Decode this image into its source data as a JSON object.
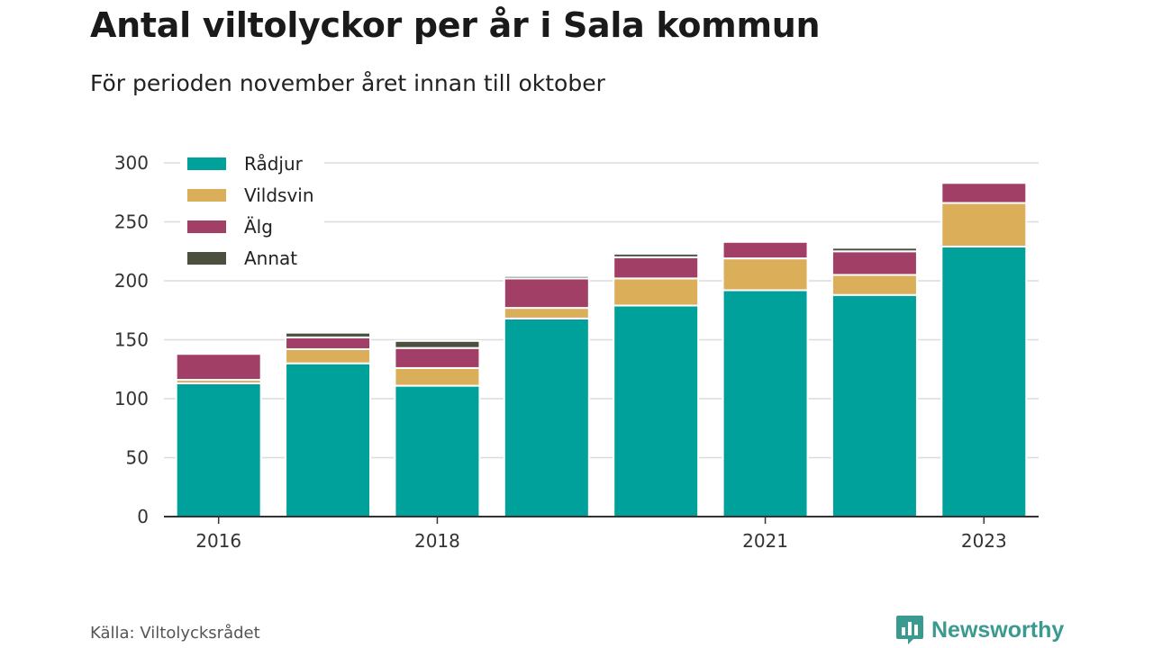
{
  "title": "Antal viltolyckor per år i Sala kommun",
  "subtitle": "För perioden november året innan till oktober",
  "source": "Källa: Viltolycksrådet",
  "brand": "Newsworthy",
  "colors": {
    "Rådjur": "#00a19a",
    "Vildsvin": "#dbae5a",
    "Älg": "#a23f66",
    "Annat": "#4a4f3e",
    "brand": "#3a9a8f"
  },
  "chart_data": {
    "type": "bar",
    "stacked": true,
    "categories": [
      "2016",
      "2017",
      "2018",
      "2019",
      "2020",
      "2021",
      "2022",
      "2023"
    ],
    "x_tick_labels": [
      "2016",
      "",
      "2018",
      "",
      "",
      "2021",
      "",
      "2023"
    ],
    "series": [
      {
        "name": "Rådjur",
        "values": [
          113,
          130,
          111,
          168,
          179,
          192,
          188,
          229
        ]
      },
      {
        "name": "Vildsvin",
        "values": [
          3,
          12,
          15,
          9,
          23,
          27,
          17,
          37
        ]
      },
      {
        "name": "Älg",
        "values": [
          22,
          10,
          17,
          25,
          18,
          14,
          20,
          17
        ]
      },
      {
        "name": "Annat",
        "values": [
          0,
          4,
          6,
          2,
          3,
          0,
          3,
          0
        ]
      }
    ],
    "ylim": [
      0,
      300
    ],
    "yticks": [
      0,
      50,
      100,
      150,
      200,
      250,
      300
    ],
    "grid": true,
    "legend": "top-left"
  }
}
